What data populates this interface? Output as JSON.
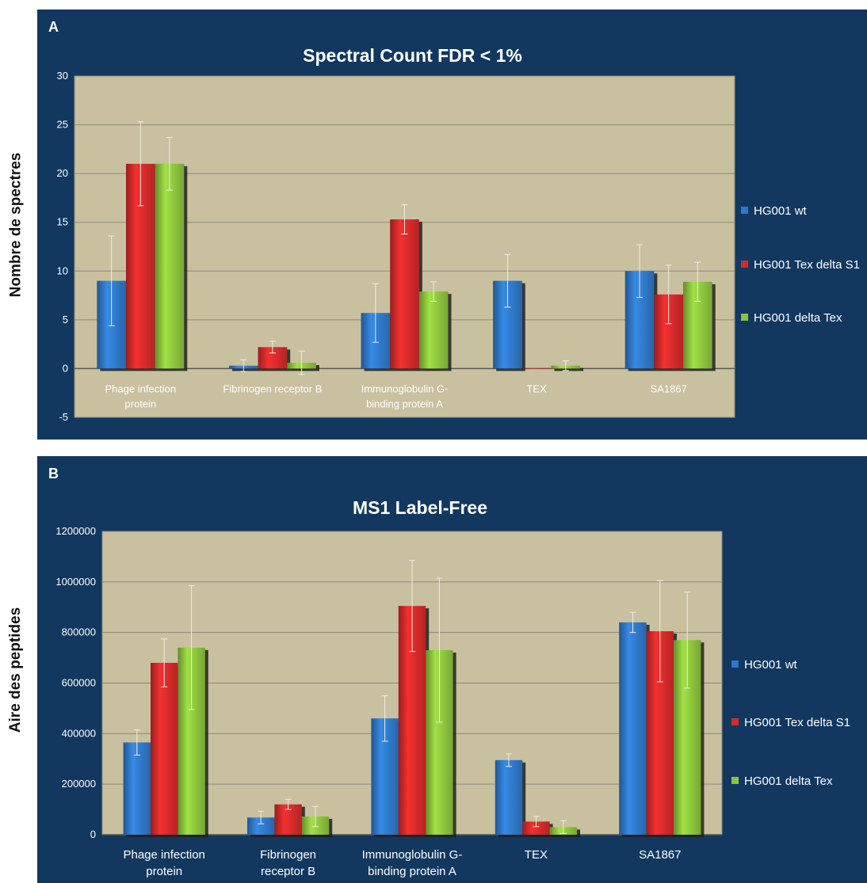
{
  "chart_data": [
    {
      "type": "bar",
      "panel_label": "A",
      "title": "Spectral Count FDR < 1%",
      "xlabel": "",
      "ylabel": "Nombre de spectres",
      "ylim": [
        -5,
        30
      ],
      "yticks": [
        "-5",
        "0",
        "5",
        "10",
        "15",
        "20",
        "25",
        "30"
      ],
      "categories": [
        [
          "Phage infection",
          "protein"
        ],
        [
          "Fibrinogen receptor B"
        ],
        [
          "Immunoglobulin G-",
          "binding protein A"
        ],
        [
          "TEX"
        ],
        [
          "SA1867"
        ]
      ],
      "series": [
        {
          "name": "HG001 wt",
          "color": "#2f78c8",
          "values": [
            9,
            0.3,
            5.7,
            9,
            10
          ],
          "errors": [
            4.6,
            0.6,
            3.0,
            2.7,
            2.7
          ]
        },
        {
          "name": "HG001 Tex delta S1",
          "color": "#d42a2a",
          "values": [
            21,
            2.2,
            15.3,
            0,
            7.6
          ],
          "errors": [
            4.3,
            0.6,
            1.5,
            0,
            3.0
          ]
        },
        {
          "name": "HG001 delta Tex",
          "color": "#8cc43c",
          "values": [
            21,
            0.6,
            7.9,
            0.3,
            8.9
          ],
          "errors": [
            2.7,
            1.2,
            1.0,
            0.5,
            2.0
          ]
        }
      ],
      "grid": true,
      "legend_position": "right"
    },
    {
      "type": "bar",
      "panel_label": "B",
      "title": "MS1 Label-Free",
      "xlabel": "",
      "ylabel": "Aire des peptides",
      "ylim": [
        0,
        1200000
      ],
      "yticks": [
        "0",
        "200000",
        "400000",
        "600000",
        "800000",
        "1000000",
        "1200000"
      ],
      "categories": [
        [
          "Phage infection",
          "protein"
        ],
        [
          "Fibrinogen",
          "receptor B"
        ],
        [
          "Immunoglobulin G-",
          "binding protein A"
        ],
        [
          "TEX"
        ],
        [
          "SA1867"
        ]
      ],
      "series": [
        {
          "name": "HG001 wt",
          "color": "#2f78c8",
          "values": [
            365000,
            68000,
            460000,
            295000,
            840000
          ],
          "errors": [
            50000,
            25000,
            90000,
            25000,
            40000
          ]
        },
        {
          "name": "HG001 Tex delta S1",
          "color": "#d42a2a",
          "values": [
            680000,
            120000,
            905000,
            52000,
            805000
          ],
          "errors": [
            95000,
            20000,
            180000,
            20000,
            200000
          ]
        },
        {
          "name": "HG001 delta Tex",
          "color": "#8cc43c",
          "values": [
            740000,
            72000,
            730000,
            30000,
            770000
          ],
          "errors": [
            245000,
            40000,
            285000,
            25000,
            190000
          ]
        }
      ],
      "grid": true,
      "legend_position": "right"
    }
  ]
}
